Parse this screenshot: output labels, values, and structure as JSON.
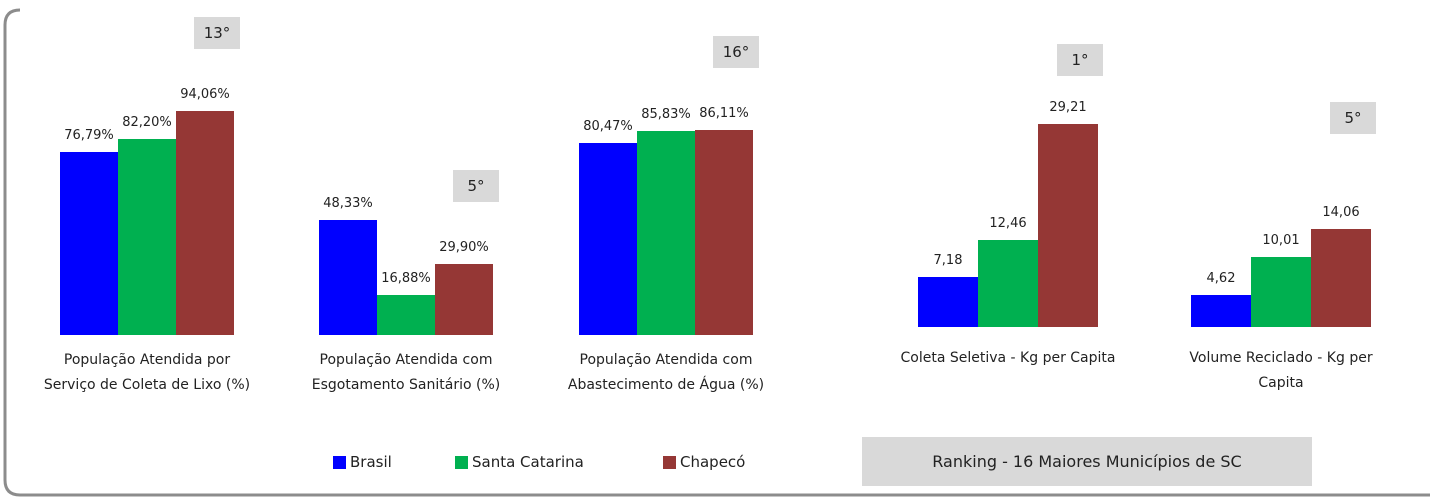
{
  "chart_data": [
    {
      "type": "bar",
      "categories": [
        "População Atendida por\nServiço de Coleta de Lixo (%)",
        "População Atendida com\nEsgotamento Sanitário (%)",
        "População Atendida com\nAbastecimento de Água (%)"
      ],
      "annotations": [
        "13°",
        "5°",
        "16°"
      ],
      "series": [
        {
          "name": "Brasil",
          "color": "#0000ff",
          "values": [
            76.79,
            48.33,
            80.47
          ],
          "value_labels": [
            "76,79%",
            "48,33%",
            "80,47%"
          ]
        },
        {
          "name": "Santa Catarina",
          "color": "#00b050",
          "values": [
            82.2,
            16.88,
            85.83
          ],
          "value_labels": [
            "82,20%",
            "16,88%",
            "85,83%"
          ]
        },
        {
          "name": "Chapecó",
          "color": "#953735",
          "values": [
            94.06,
            29.9,
            86.11
          ],
          "value_labels": [
            "94,06%",
            "29,90%",
            "86,11%"
          ]
        }
      ]
    },
    {
      "type": "bar",
      "categories": [
        "Coleta Seletiva - Kg per Capita",
        "Volume Reciclado - Kg per\nCapita"
      ],
      "annotations": [
        "1°",
        "5°"
      ],
      "series": [
        {
          "color": "#0000ff",
          "values": [
            7.18,
            4.62
          ],
          "value_labels": [
            "7,18",
            "4,62"
          ]
        },
        {
          "color": "#00b050",
          "values": [
            12.46,
            10.01
          ],
          "value_labels": [
            "12,46",
            "10,01"
          ]
        },
        {
          "color": "#953735",
          "values": [
            29.21,
            14.06
          ],
          "value_labels": [
            "29,21",
            "14,06"
          ]
        }
      ]
    }
  ],
  "note": "Ranking - 16 Maiores Municípios de SC"
}
